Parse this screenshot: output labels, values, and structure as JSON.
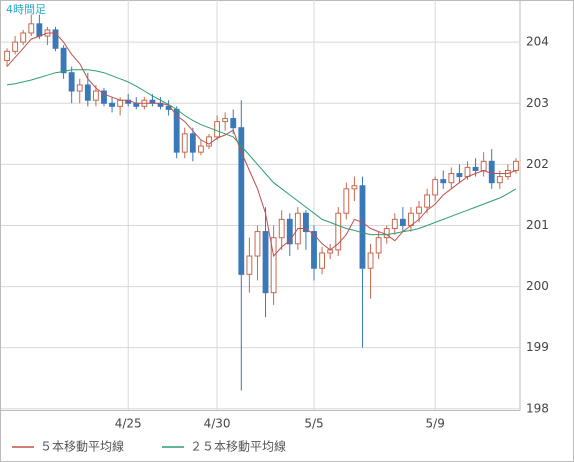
{
  "chart_data": {
    "type": "candlestick",
    "title": "4時間足",
    "categories": [
      null,
      null,
      null,
      null,
      null,
      null,
      null,
      null,
      null,
      null,
      null,
      null,
      null,
      null,
      null,
      "4/25",
      null,
      null,
      null,
      null,
      null,
      null,
      null,
      null,
      null,
      null,
      "4/30",
      null,
      null,
      null,
      null,
      null,
      null,
      null,
      null,
      null,
      null,
      null,
      "5/5",
      null,
      null,
      null,
      null,
      null,
      null,
      null,
      null,
      null,
      null,
      null,
      null,
      null,
      null,
      "5/9",
      null,
      null,
      null,
      null,
      null,
      null,
      null,
      null,
      null,
      null
    ],
    "open": [
      203.7,
      203.85,
      204.0,
      204.15,
      204.3,
      204.1,
      204.2,
      203.9,
      203.5,
      203.2,
      203.3,
      203.05,
      203.2,
      203.0,
      202.95,
      203.05,
      203.0,
      202.95,
      203.05,
      203.0,
      202.95,
      202.9,
      202.2,
      202.5,
      202.2,
      202.3,
      202.45,
      202.7,
      202.75,
      202.6,
      200.2,
      200.5,
      200.9,
      199.9,
      200.8,
      201.1,
      200.7,
      201.2,
      200.9,
      200.3,
      200.55,
      200.6,
      201.2,
      201.6,
      201.65,
      200.3,
      200.55,
      200.8,
      200.95,
      201.1,
      201.0,
      201.2,
      201.3,
      201.5,
      201.75,
      201.7,
      201.85,
      201.8,
      201.95,
      201.9,
      202.05,
      201.7,
      201.8,
      201.9
    ],
    "high": [
      203.9,
      204.1,
      204.2,
      204.45,
      204.45,
      204.25,
      204.25,
      203.95,
      203.6,
      203.4,
      203.5,
      203.3,
      203.25,
      203.1,
      203.1,
      203.15,
      203.1,
      203.1,
      203.15,
      203.1,
      203.05,
      202.95,
      202.6,
      202.6,
      202.4,
      202.5,
      202.8,
      202.85,
      202.9,
      203.05,
      200.8,
      201.0,
      201.3,
      201.0,
      201.25,
      201.2,
      201.3,
      201.25,
      201.0,
      200.65,
      200.7,
      201.3,
      201.7,
      201.8,
      201.8,
      200.7,
      200.9,
      201.0,
      201.2,
      201.3,
      201.3,
      201.4,
      201.6,
      201.8,
      201.9,
      201.95,
      202.0,
      202.05,
      202.1,
      202.2,
      202.25,
      201.9,
      202.0,
      202.1
    ],
    "low": [
      203.6,
      203.8,
      203.95,
      204.1,
      204.05,
      203.95,
      203.85,
      203.4,
      203.0,
      203.0,
      202.95,
      202.95,
      202.95,
      202.85,
      202.8,
      202.95,
      202.9,
      202.9,
      202.95,
      202.9,
      202.8,
      202.1,
      202.1,
      202.05,
      202.15,
      202.25,
      202.4,
      202.55,
      202.5,
      198.3,
      199.9,
      200.1,
      199.5,
      199.7,
      200.6,
      200.5,
      200.6,
      200.6,
      200.1,
      200.2,
      200.45,
      200.5,
      201.1,
      201.4,
      199.0,
      199.8,
      200.45,
      200.7,
      200.85,
      200.9,
      200.9,
      201.05,
      201.2,
      201.4,
      201.6,
      201.6,
      201.7,
      201.75,
      201.8,
      201.8,
      201.6,
      201.6,
      201.75,
      201.85
    ],
    "close": [
      203.85,
      204.0,
      204.15,
      204.3,
      204.1,
      204.2,
      203.9,
      203.5,
      203.2,
      203.3,
      203.05,
      203.2,
      203.0,
      202.95,
      203.05,
      203.0,
      202.95,
      203.05,
      203.0,
      202.95,
      202.9,
      202.2,
      202.5,
      202.2,
      202.3,
      202.45,
      202.7,
      202.75,
      202.6,
      200.2,
      200.5,
      200.9,
      199.9,
      200.8,
      201.1,
      200.7,
      201.2,
      200.9,
      200.3,
      200.55,
      200.6,
      201.2,
      201.6,
      201.65,
      200.3,
      200.55,
      200.8,
      200.95,
      201.1,
      201.0,
      201.2,
      201.3,
      201.5,
      201.75,
      201.7,
      201.85,
      201.8,
      201.95,
      201.9,
      202.05,
      201.7,
      201.8,
      201.9,
      202.05
    ],
    "up_color": "#c8684e",
    "down_color": "#3a78b8",
    "series": [
      {
        "name": "５本移動平均線",
        "color": "#c0504d",
        "values": [
          203.6,
          203.75,
          203.9,
          204.05,
          204.1,
          204.15,
          204.15,
          204.0,
          203.8,
          203.65,
          203.4,
          203.25,
          203.15,
          203.1,
          203.05,
          203.05,
          203.0,
          203.0,
          203.0,
          203.0,
          202.97,
          202.8,
          202.7,
          202.55,
          202.4,
          202.33,
          202.43,
          202.48,
          202.56,
          202.2,
          201.9,
          201.6,
          201.2,
          200.5,
          200.65,
          200.75,
          200.95,
          200.95,
          200.85,
          200.7,
          200.6,
          200.7,
          200.85,
          201.1,
          201.05,
          200.95,
          200.9,
          200.85,
          200.75,
          200.9,
          201.0,
          201.1,
          201.25,
          201.35,
          201.5,
          201.6,
          201.7,
          201.8,
          201.85,
          201.9,
          201.85,
          201.85,
          201.85,
          201.9
        ]
      },
      {
        "name": "２５本移動平均線",
        "color": "#2e9e6e",
        "values": [
          203.3,
          203.32,
          203.35,
          203.38,
          203.42,
          203.46,
          203.5,
          203.52,
          203.55,
          203.55,
          203.55,
          203.53,
          203.5,
          203.45,
          203.4,
          203.35,
          203.28,
          203.2,
          203.12,
          203.05,
          202.98,
          202.9,
          202.8,
          202.72,
          202.65,
          202.6,
          202.55,
          202.5,
          202.45,
          202.3,
          202.15,
          202.0,
          201.85,
          201.7,
          201.6,
          201.5,
          201.4,
          201.3,
          201.2,
          201.1,
          201.05,
          201.0,
          200.95,
          200.92,
          200.88,
          200.85,
          200.85,
          200.85,
          200.87,
          200.9,
          200.92,
          200.95,
          201.0,
          201.05,
          201.1,
          201.15,
          201.2,
          201.25,
          201.3,
          201.35,
          201.4,
          201.45,
          201.52,
          201.6
        ]
      }
    ],
    "ylim": [
      197.98,
      204.69
    ],
    "yticks": [
      198,
      199,
      200,
      201,
      202,
      203,
      204
    ],
    "grid": true
  }
}
